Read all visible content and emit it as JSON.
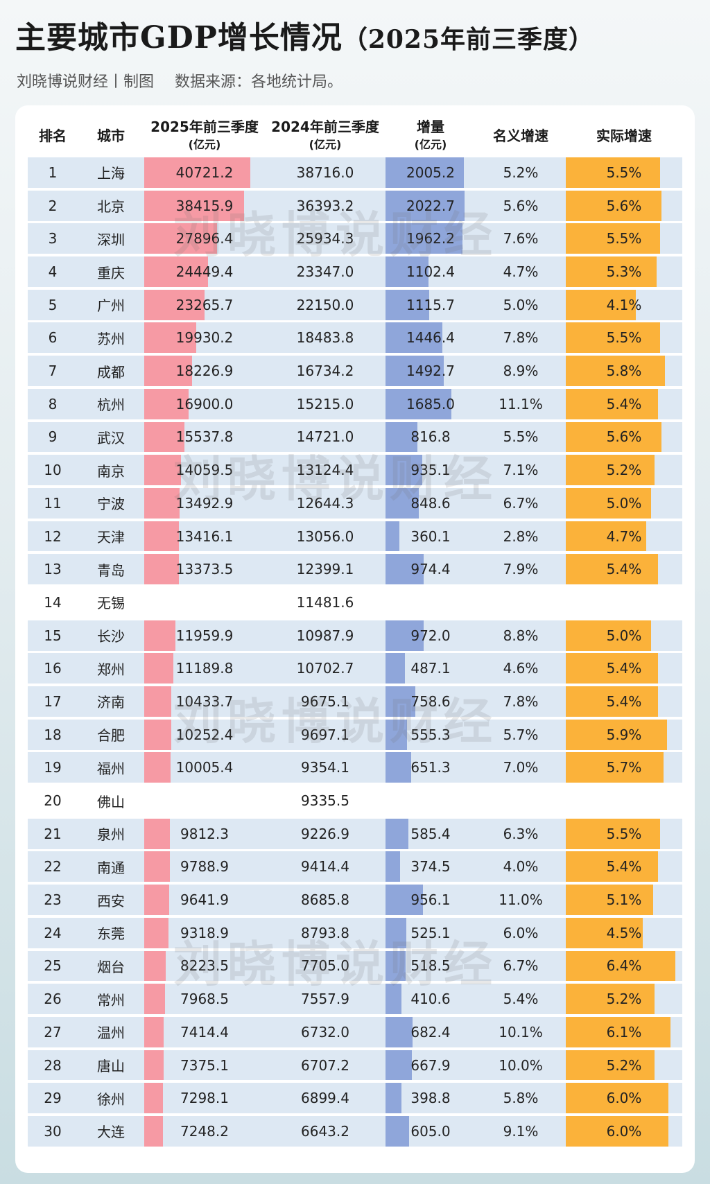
{
  "header": {
    "title_main": "主要城市GDP增长情况",
    "title_sub": "（2025年前三季度）",
    "source_left": "刘晓博说财经丨制图",
    "source_right": "数据来源：各地统计局。"
  },
  "watermark": "刘晓博说财经",
  "columns": {
    "rank": "排名",
    "city": "城市",
    "gdp2025": "2025年前三季度",
    "gdp2025_unit": "(亿元)",
    "gdp2024": "2024年前三季度",
    "gdp2024_unit": "(亿元)",
    "increase": "增量",
    "increase_unit": "(亿元)",
    "nominal": "名义增速",
    "real": "实际增速"
  },
  "colors": {
    "gdp2025_bar": "#f69aa4",
    "increase_bar": "#8fa6da",
    "real_bar": "#fbb23a",
    "row_band": "#dde8f3"
  },
  "chart_data": {
    "type": "table",
    "title": "主要城市GDP增长情况（2025年前三季度）",
    "rows": [
      {
        "rank": "1",
        "city": "上海",
        "gdp2025": "40721.2",
        "gdp2024": "38716.0",
        "increase": "2005.2",
        "nominal": "5.2%",
        "real": "5.5%"
      },
      {
        "rank": "2",
        "city": "北京",
        "gdp2025": "38415.9",
        "gdp2024": "36393.2",
        "increase": "2022.7",
        "nominal": "5.6%",
        "real": "5.6%"
      },
      {
        "rank": "3",
        "city": "深圳",
        "gdp2025": "27896.4",
        "gdp2024": "25934.3",
        "increase": "1962.2",
        "nominal": "7.6%",
        "real": "5.5%"
      },
      {
        "rank": "4",
        "city": "重庆",
        "gdp2025": "24449.4",
        "gdp2024": "23347.0",
        "increase": "1102.4",
        "nominal": "4.7%",
        "real": "5.3%"
      },
      {
        "rank": "5",
        "city": "广州",
        "gdp2025": "23265.7",
        "gdp2024": "22150.0",
        "increase": "1115.7",
        "nominal": "5.0%",
        "real": "4.1%"
      },
      {
        "rank": "6",
        "city": "苏州",
        "gdp2025": "19930.2",
        "gdp2024": "18483.8",
        "increase": "1446.4",
        "nominal": "7.8%",
        "real": "5.5%"
      },
      {
        "rank": "7",
        "city": "成都",
        "gdp2025": "18226.9",
        "gdp2024": "16734.2",
        "increase": "1492.7",
        "nominal": "8.9%",
        "real": "5.8%"
      },
      {
        "rank": "8",
        "city": "杭州",
        "gdp2025": "16900.0",
        "gdp2024": "15215.0",
        "increase": "1685.0",
        "nominal": "11.1%",
        "real": "5.4%"
      },
      {
        "rank": "9",
        "city": "武汉",
        "gdp2025": "15537.8",
        "gdp2024": "14721.0",
        "increase": "816.8",
        "nominal": "5.5%",
        "real": "5.6%"
      },
      {
        "rank": "10",
        "city": "南京",
        "gdp2025": "14059.5",
        "gdp2024": "13124.4",
        "increase": "935.1",
        "nominal": "7.1%",
        "real": "5.2%"
      },
      {
        "rank": "11",
        "city": "宁波",
        "gdp2025": "13492.9",
        "gdp2024": "12644.3",
        "increase": "848.6",
        "nominal": "6.7%",
        "real": "5.0%"
      },
      {
        "rank": "12",
        "city": "天津",
        "gdp2025": "13416.1",
        "gdp2024": "13056.0",
        "increase": "360.1",
        "nominal": "2.8%",
        "real": "4.7%"
      },
      {
        "rank": "13",
        "city": "青岛",
        "gdp2025": "13373.5",
        "gdp2024": "12399.1",
        "increase": "974.4",
        "nominal": "7.9%",
        "real": "5.4%"
      },
      {
        "rank": "14",
        "city": "无锡",
        "gdp2025": "",
        "gdp2024": "11481.6",
        "increase": "",
        "nominal": "",
        "real": ""
      },
      {
        "rank": "15",
        "city": "长沙",
        "gdp2025": "11959.9",
        "gdp2024": "10987.9",
        "increase": "972.0",
        "nominal": "8.8%",
        "real": "5.0%"
      },
      {
        "rank": "16",
        "city": "郑州",
        "gdp2025": "11189.8",
        "gdp2024": "10702.7",
        "increase": "487.1",
        "nominal": "4.6%",
        "real": "5.4%"
      },
      {
        "rank": "17",
        "city": "济南",
        "gdp2025": "10433.7",
        "gdp2024": "9675.1",
        "increase": "758.6",
        "nominal": "7.8%",
        "real": "5.4%"
      },
      {
        "rank": "18",
        "city": "合肥",
        "gdp2025": "10252.4",
        "gdp2024": "9697.1",
        "increase": "555.3",
        "nominal": "5.7%",
        "real": "5.9%"
      },
      {
        "rank": "19",
        "city": "福州",
        "gdp2025": "10005.4",
        "gdp2024": "9354.1",
        "increase": "651.3",
        "nominal": "7.0%",
        "real": "5.7%"
      },
      {
        "rank": "20",
        "city": "佛山",
        "gdp2025": "",
        "gdp2024": "9335.5",
        "increase": "",
        "nominal": "",
        "real": ""
      },
      {
        "rank": "21",
        "city": "泉州",
        "gdp2025": "9812.3",
        "gdp2024": "9226.9",
        "increase": "585.4",
        "nominal": "6.3%",
        "real": "5.5%"
      },
      {
        "rank": "22",
        "city": "南通",
        "gdp2025": "9788.9",
        "gdp2024": "9414.4",
        "increase": "374.5",
        "nominal": "4.0%",
        "real": "5.4%"
      },
      {
        "rank": "23",
        "city": "西安",
        "gdp2025": "9641.9",
        "gdp2024": "8685.8",
        "increase": "956.1",
        "nominal": "11.0%",
        "real": "5.1%"
      },
      {
        "rank": "24",
        "city": "东莞",
        "gdp2025": "9318.9",
        "gdp2024": "8793.8",
        "increase": "525.1",
        "nominal": "6.0%",
        "real": "4.5%"
      },
      {
        "rank": "25",
        "city": "烟台",
        "gdp2025": "8223.5",
        "gdp2024": "7705.0",
        "increase": "518.5",
        "nominal": "6.7%",
        "real": "6.4%"
      },
      {
        "rank": "26",
        "city": "常州",
        "gdp2025": "7968.5",
        "gdp2024": "7557.9",
        "increase": "410.6",
        "nominal": "5.4%",
        "real": "5.2%"
      },
      {
        "rank": "27",
        "city": "温州",
        "gdp2025": "7414.4",
        "gdp2024": "6732.0",
        "increase": "682.4",
        "nominal": "10.1%",
        "real": "6.1%"
      },
      {
        "rank": "28",
        "city": "唐山",
        "gdp2025": "7375.1",
        "gdp2024": "6707.2",
        "increase": "667.9",
        "nominal": "10.0%",
        "real": "5.2%"
      },
      {
        "rank": "29",
        "city": "徐州",
        "gdp2025": "7298.1",
        "gdp2024": "6899.4",
        "increase": "398.8",
        "nominal": "5.8%",
        "real": "6.0%"
      },
      {
        "rank": "30",
        "city": "大连",
        "gdp2025": "7248.2",
        "gdp2024": "6643.2",
        "increase": "605.0",
        "nominal": "9.1%",
        "real": "6.0%"
      }
    ]
  }
}
